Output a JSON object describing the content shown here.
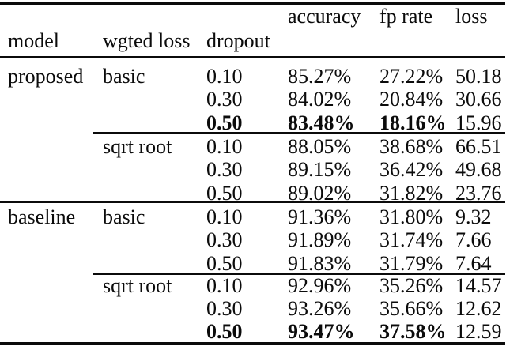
{
  "table": {
    "header": {
      "model": "model",
      "wgted_loss": "wgted loss",
      "dropout": "dropout",
      "accuracy": "accuracy",
      "fp_rate": "fp rate",
      "loss": "loss"
    },
    "rows": [
      {
        "model": "proposed",
        "wgted_loss": "basic",
        "dropout": "0.10",
        "accuracy": "85.27%",
        "fp_rate": "27.22%",
        "loss": "50.18",
        "bold": false
      },
      {
        "dropout": "0.30",
        "accuracy": "84.02%",
        "fp_rate": "20.84%",
        "loss": "30.66",
        "bold": false
      },
      {
        "dropout": "0.50",
        "accuracy": "83.48%",
        "fp_rate": "18.16%",
        "loss": "15.96",
        "bold": true
      },
      {
        "wgted_loss": "sqrt root",
        "dropout": "0.10",
        "accuracy": "88.05%",
        "fp_rate": "38.68%",
        "loss": "66.51",
        "bold": false
      },
      {
        "dropout": "0.30",
        "accuracy": "89.15%",
        "fp_rate": "36.42%",
        "loss": "49.68",
        "bold": false
      },
      {
        "dropout": "0.50",
        "accuracy": "89.02%",
        "fp_rate": "31.82%",
        "loss": "23.76",
        "bold": false
      },
      {
        "model": "baseline",
        "wgted_loss": "basic",
        "dropout": "0.10",
        "accuracy": "91.36%",
        "fp_rate": "31.80%",
        "loss": "9.32",
        "bold": false
      },
      {
        "dropout": "0.30",
        "accuracy": "91.89%",
        "fp_rate": "31.74%",
        "loss": "7.66",
        "bold": false
      },
      {
        "dropout": "0.50",
        "accuracy": "91.83%",
        "fp_rate": "31.79%",
        "loss": "7.64",
        "bold": false
      },
      {
        "wgted_loss": "sqrt root",
        "dropout": "0.10",
        "accuracy": "92.96%",
        "fp_rate": "35.26%",
        "loss": "14.57",
        "bold": false
      },
      {
        "dropout": "0.30",
        "accuracy": "93.26%",
        "fp_rate": "35.66%",
        "loss": "12.62",
        "bold": false
      },
      {
        "dropout": "0.50",
        "accuracy": "93.47%",
        "fp_rate": "37.58%",
        "loss": "12.59",
        "bold": true
      }
    ],
    "colors": {
      "text": "#0b0b0b",
      "background": "#ffffff",
      "rule": "#0b0b0b"
    }
  }
}
